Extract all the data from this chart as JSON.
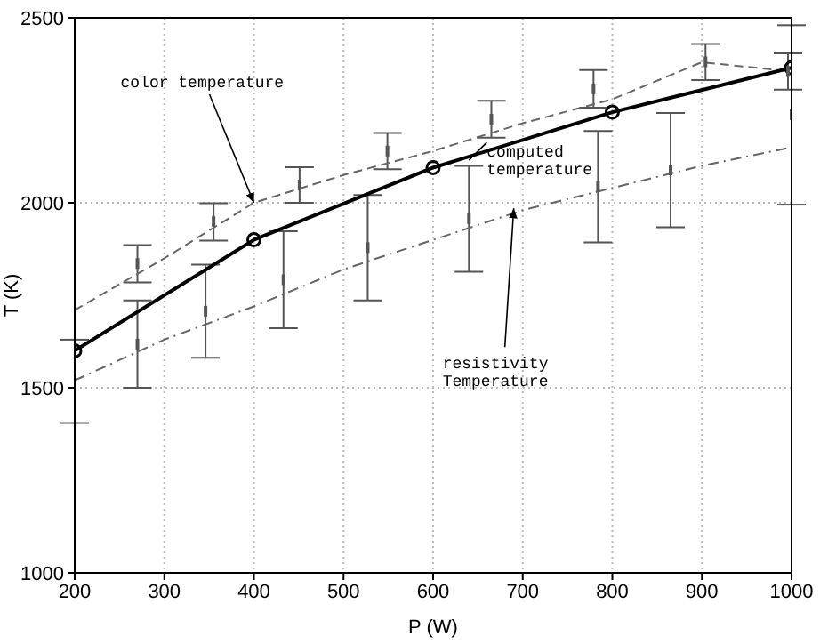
{
  "chart_data": {
    "type": "line",
    "xlabel": "P (W)",
    "ylabel": "T (K)",
    "xlim": [
      200,
      1000
    ],
    "ylim": [
      1000,
      2500
    ],
    "xticks": [
      200,
      300,
      400,
      500,
      600,
      700,
      800,
      900,
      1000
    ],
    "yticks": [
      1000,
      1500,
      2000,
      2500
    ],
    "grid": true,
    "legend": false,
    "series": [
      {
        "line_style": "dashed",
        "marker": "none",
        "color": "#666666",
        "x": [
          200,
          300,
          400,
          500,
          600,
          700,
          800,
          900,
          1000
        ],
        "values": [
          1710,
          1850,
          2000,
          2075,
          2140,
          2215,
          2280,
          2380,
          2355
        ]
      },
      {
        "line_style": "dashdot",
        "marker": "none",
        "color": "#666666",
        "x": [
          200,
          300,
          400,
          500,
          600,
          700,
          800,
          900,
          1000
        ],
        "values": [
          1520,
          1630,
          1720,
          1820,
          1900,
          1980,
          2040,
          2100,
          2150
        ]
      },
      {
        "line_style": "solid",
        "marker": "circle",
        "color": "#000000",
        "x": [
          200,
          400,
          600,
          800,
          1000
        ],
        "values": [
          1600,
          1900,
          2095,
          2245,
          2365
        ]
      },
      {
        "type": "scatter",
        "color": "#555555",
        "x": [
          200,
          270,
          270,
          346,
          355,
          433,
          451,
          527,
          549,
          640,
          665,
          779,
          784,
          865,
          904,
          996,
          1000
        ],
        "values": [
          1518,
          1836,
          1618,
          1707,
          1949,
          1792,
          2048,
          1879,
          2140,
          1957,
          2226,
          2308,
          2044,
          2089,
          2381,
          2355,
          2238
        ],
        "errors": [
          [
            1405,
            1630
          ],
          [
            1785,
            1886
          ],
          [
            1500,
            1736
          ],
          [
            1581,
            1833
          ],
          [
            1898,
            1999
          ],
          [
            1661,
            1923
          ],
          [
            2000,
            2096
          ],
          [
            1736,
            2021
          ],
          [
            2091,
            2189
          ],
          [
            1814,
            2100
          ],
          [
            2176,
            2276
          ],
          [
            2257,
            2359
          ],
          [
            1893,
            2194
          ],
          [
            1934,
            2243
          ],
          [
            2332,
            2429
          ],
          [
            2306,
            2404
          ],
          [
            1995,
            2480
          ]
        ]
      }
    ],
    "annotations": [
      {
        "text": "color temperature",
        "x": 400,
        "y": 2000
      },
      {
        "text": "computed\ntemperature",
        "x": 640,
        "y": 2115
      },
      {
        "text": "resistivity\nTemperature",
        "x": 690,
        "y": 1985
      }
    ]
  }
}
